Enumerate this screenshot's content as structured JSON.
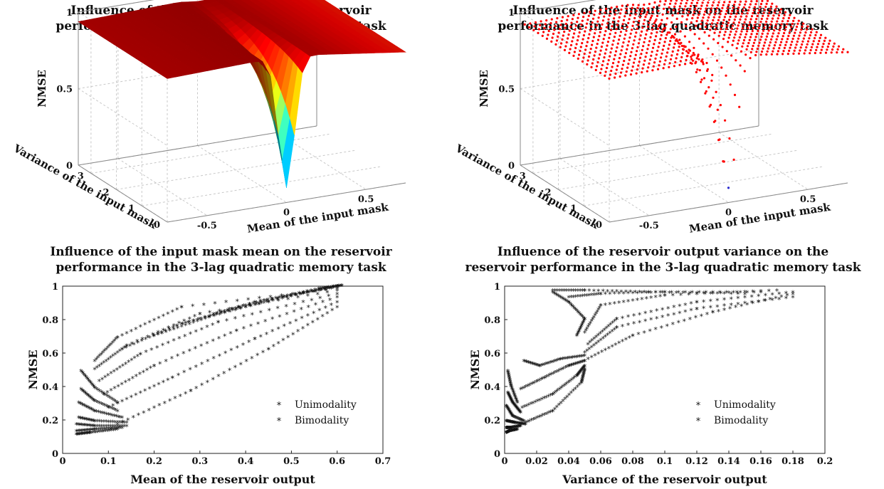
{
  "chart_data": [
    {
      "type": "surface",
      "title_lines": [
        "Influence of the input mask on the reservoir",
        "performance in the 3-lag quadratic memory task"
      ],
      "xlabel": "Mean of the input mask",
      "ylabel": "Variance of the input mask",
      "zlabel": "NMSE",
      "x_ticks": [
        "-0.5",
        "0",
        "0.5"
      ],
      "y_ticks": [
        "0",
        "1",
        "2",
        "3"
      ],
      "z_ticks": [
        "0",
        "0.5",
        "1"
      ],
      "xlim": [
        -0.75,
        0.75
      ],
      "ylim": [
        0,
        3.5
      ],
      "zlim": [
        0,
        1
      ],
      "colormap": "jet",
      "min": {
        "x": 0.0,
        "y": 0.0,
        "z": 0.06
      }
    },
    {
      "type": "scatter3d",
      "title_lines": [
        "Influence of the input mask on the reservoir",
        "performance in the 3-lag quadratic memory task"
      ],
      "xlabel": "Mean of the input mask",
      "ylabel": "Variance of the input mask",
      "zlabel": "NMSE",
      "x_ticks": [
        "-0.5",
        "0",
        "0.5"
      ],
      "y_ticks": [
        "0",
        "1",
        "2",
        "3"
      ],
      "z_ticks": [
        "0",
        "0.5",
        "1"
      ],
      "xlim": [
        -0.75,
        0.75
      ],
      "ylim": [
        0,
        3.5
      ],
      "zlim": [
        0,
        1
      ],
      "colors": {
        "unimodal": "#2a2acf",
        "bimodal": "#ff0000"
      }
    },
    {
      "type": "scatter",
      "title_lines": [
        "Influence of the input mask mean on the reservoir",
        "performance in the 3-lag quadratic memory task"
      ],
      "xlabel": "Mean of the reservoir output",
      "ylabel": "NMSE",
      "x_ticks": [
        "0",
        "0.1",
        "0.2",
        "0.3",
        "0.4",
        "0.5",
        "0.6",
        "0.7"
      ],
      "y_ticks": [
        "0",
        "0.2",
        "0.4",
        "0.6",
        "0.8",
        "1"
      ],
      "xlim": [
        0,
        0.7
      ],
      "ylim": [
        0,
        1
      ],
      "legend": [
        {
          "label": "Unimodality",
          "color": "#5555ee"
        },
        {
          "label": "Bimodality",
          "color": "#ff0000"
        }
      ],
      "legend_position": "lower-right",
      "series": [
        {
          "name": "Unimodality",
          "curves": [
            {
              "x": [
                0.04,
                0.07,
                0.12
              ],
              "y": [
                0.49,
                0.39,
                0.3
              ]
            },
            {
              "x": [
                0.04,
                0.07,
                0.12
              ],
              "y": [
                0.38,
                0.31,
                0.25
              ]
            },
            {
              "x": [
                0.035,
                0.07,
                0.13
              ],
              "y": [
                0.3,
                0.25,
                0.21
              ]
            },
            {
              "x": [
                0.035,
                0.07,
                0.14
              ],
              "y": [
                0.21,
                0.19,
                0.18
              ]
            },
            {
              "x": [
                0.03,
                0.07,
                0.14
              ],
              "y": [
                0.17,
                0.16,
                0.16
              ]
            },
            {
              "x": [
                0.03,
                0.07,
                0.13
              ],
              "y": [
                0.13,
                0.14,
                0.15
              ]
            },
            {
              "x": [
                0.03,
                0.06,
                0.12
              ],
              "y": [
                0.11,
                0.12,
                0.14
              ]
            }
          ]
        },
        {
          "name": "Bimodality",
          "curves": [
            {
              "x": [
                0.12,
                0.28,
                0.45,
                0.6
              ],
              "y": [
                0.17,
                0.37,
                0.62,
                0.87
              ]
            },
            {
              "x": [
                0.1,
                0.24,
                0.42,
                0.6
              ],
              "y": [
                0.27,
                0.45,
                0.68,
                0.9
              ]
            },
            {
              "x": [
                0.09,
                0.2,
                0.38,
                0.6
              ],
              "y": [
                0.35,
                0.52,
                0.73,
                0.93
              ]
            },
            {
              "x": [
                0.08,
                0.17,
                0.34,
                0.6
              ],
              "y": [
                0.43,
                0.59,
                0.78,
                0.95
              ]
            },
            {
              "x": [
                0.07,
                0.14,
                0.3,
                0.6
              ],
              "y": [
                0.5,
                0.64,
                0.83,
                0.97
              ]
            },
            {
              "x": [
                0.07,
                0.12,
                0.26,
                0.6
              ],
              "y": [
                0.55,
                0.69,
                0.87,
                0.98
              ]
            },
            {
              "x": [
                0.13,
                0.25,
                0.42,
                0.6
              ],
              "y": [
                0.62,
                0.76,
                0.9,
                0.99
              ]
            },
            {
              "x": [
                0.2,
                0.32,
                0.48,
                0.61
              ],
              "y": [
                0.7,
                0.81,
                0.93,
                1.0
              ]
            },
            {
              "x": [
                0.26,
                0.38,
                0.52,
                0.61
              ],
              "y": [
                0.77,
                0.86,
                0.95,
                1.0
              ]
            },
            {
              "x": [
                0.33,
                0.44,
                0.56,
                0.61
              ],
              "y": [
                0.83,
                0.91,
                0.98,
                1.0
              ]
            }
          ]
        }
      ]
    },
    {
      "type": "scatter",
      "title_lines": [
        "Influence of the reservoir output variance on the",
        "reservoir performance in the 3-lag quadratic memory task"
      ],
      "xlabel": "Variance of the reservoir output",
      "ylabel": "NMSE",
      "x_ticks": [
        "0",
        "0.02",
        "0.04",
        "0.06",
        "0.08",
        "0.1",
        "0.12",
        "0.14",
        "0.16",
        "0.18",
        "0.2"
      ],
      "y_ticks": [
        "0",
        "0.2",
        "0.4",
        "0.6",
        "0.8",
        "1"
      ],
      "xlim": [
        0,
        0.2
      ],
      "ylim": [
        0,
        1
      ],
      "legend": [
        {
          "label": "Unimodality",
          "color": "#5555ee"
        },
        {
          "label": "Bimodality",
          "color": "#ff0000"
        }
      ],
      "legend_position": "lower-right",
      "series": [
        {
          "name": "Unimodality",
          "curves": [
            {
              "x": [
                0.002,
                0.004,
                0.008
              ],
              "y": [
                0.49,
                0.4,
                0.3
              ]
            },
            {
              "x": [
                0.002,
                0.005,
                0.01
              ],
              "y": [
                0.36,
                0.3,
                0.24
              ]
            },
            {
              "x": [
                0.001,
                0.005,
                0.012
              ],
              "y": [
                0.28,
                0.22,
                0.19
              ]
            },
            {
              "x": [
                0.001,
                0.006,
                0.013
              ],
              "y": [
                0.19,
                0.18,
                0.17
              ]
            },
            {
              "x": [
                0.001,
                0.004,
                0.01
              ],
              "y": [
                0.15,
                0.15,
                0.16
              ]
            },
            {
              "x": [
                0.001,
                0.003,
                0.008
              ],
              "y": [
                0.12,
                0.13,
                0.14
              ]
            }
          ]
        },
        {
          "name": "Bimodality",
          "curves": [
            {
              "x": [
                0.013,
                0.03,
                0.048,
                0.05
              ],
              "y": [
                0.18,
                0.25,
                0.42,
                0.5
              ]
            },
            {
              "x": [
                0.011,
                0.03,
                0.045,
                0.05
              ],
              "y": [
                0.27,
                0.35,
                0.46,
                0.52
              ]
            },
            {
              "x": [
                0.01,
                0.025,
                0.04,
                0.05
              ],
              "y": [
                0.38,
                0.45,
                0.52,
                0.55
              ]
            },
            {
              "x": [
                0.012,
                0.022,
                0.035,
                0.05
              ],
              "y": [
                0.55,
                0.52,
                0.56,
                0.58
              ]
            },
            {
              "x": [
                0.05,
                0.07,
                0.12,
                0.18
              ],
              "y": [
                0.6,
                0.75,
                0.86,
                0.93
              ]
            },
            {
              "x": [
                0.05,
                0.08,
                0.13,
                0.18
              ],
              "y": [
                0.55,
                0.7,
                0.84,
                0.95
              ]
            },
            {
              "x": [
                0.052,
                0.07,
                0.12,
                0.18
              ],
              "y": [
                0.65,
                0.8,
                0.9,
                0.96
              ]
            },
            {
              "x": [
                0.045,
                0.05,
                0.04,
                0.03
              ],
              "y": [
                0.7,
                0.8,
                0.9,
                0.96
              ]
            },
            {
              "x": [
                0.05,
                0.06,
                0.1,
                0.17
              ],
              "y": [
                0.72,
                0.88,
                0.94,
                0.97
              ]
            },
            {
              "x": [
                0.04,
                0.06,
                0.1,
                0.16
              ],
              "y": [
                0.93,
                0.95,
                0.96,
                0.96
              ]
            },
            {
              "x": [
                0.03,
                0.05,
                0.09,
                0.15
              ],
              "y": [
                0.97,
                0.97,
                0.96,
                0.95
              ]
            }
          ]
        }
      ]
    }
  ]
}
